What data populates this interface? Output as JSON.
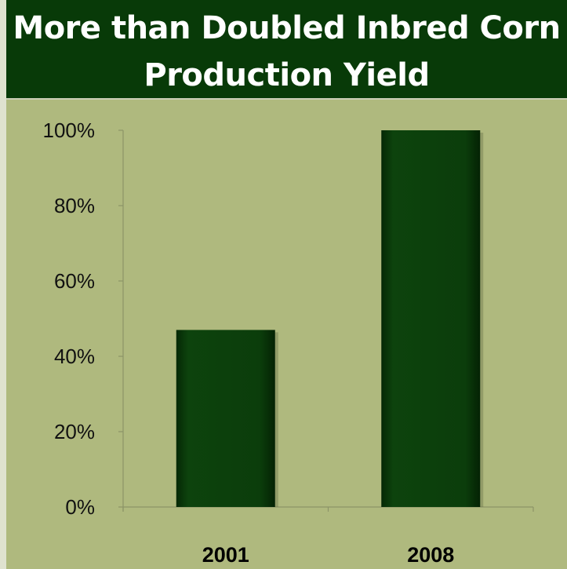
{
  "chart_data": {
    "type": "bar",
    "title": "More than Doubled Inbred Corn Production Yield",
    "categories": [
      "2001",
      "2008"
    ],
    "values": [
      47,
      100
    ],
    "ylim": [
      0,
      100
    ],
    "yticks": [
      0,
      20,
      40,
      60,
      80,
      100
    ],
    "ytick_labels": [
      "0%",
      "20%",
      "40%",
      "60%",
      "80%",
      "100%"
    ],
    "xlabel": "",
    "ylabel": "",
    "grid": false,
    "bar_color": "#0b3d0b",
    "title_band_color": "#083a08",
    "plot_background": "#afb97e"
  }
}
